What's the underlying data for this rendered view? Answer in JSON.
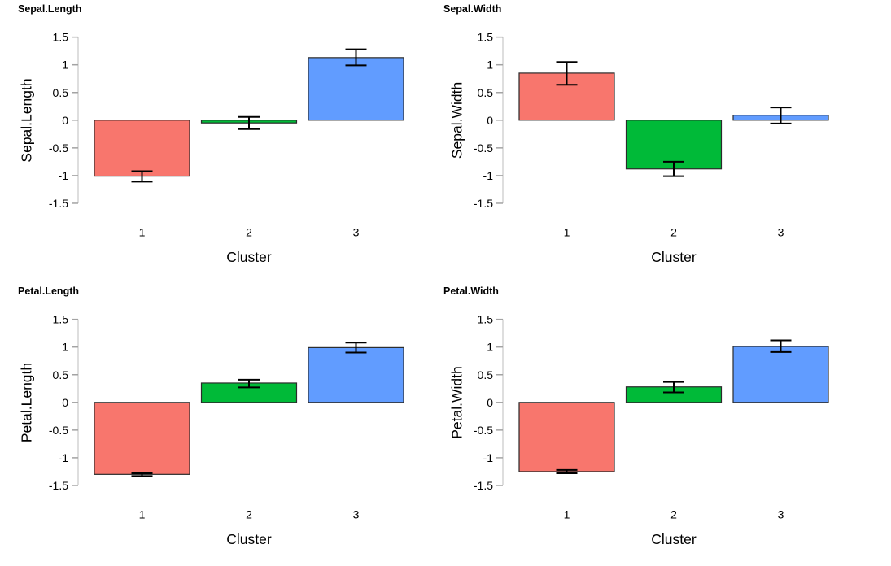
{
  "chart_data": [
    {
      "type": "bar",
      "title": "Sepal.Length",
      "ylabel": "Sepal.Length",
      "xlabel": "Cluster",
      "categories": [
        "1",
        "2",
        "3"
      ],
      "values": [
        -1.01,
        -0.05,
        1.13
      ],
      "error_low": [
        -1.11,
        -0.16,
        0.99
      ],
      "error_high": [
        -0.92,
        0.06,
        1.28
      ],
      "ylim": [
        -1.5,
        1.5
      ],
      "yticks": [
        -1.5,
        -1,
        -0.5,
        0,
        0.5,
        1,
        1.5
      ],
      "ytick_labels": [
        "-1.5",
        "-1",
        "-0.5",
        "0",
        "0.5",
        "1",
        "1.5"
      ],
      "grid": false,
      "legend": "none"
    },
    {
      "type": "bar",
      "title": "Sepal.Width",
      "ylabel": "Sepal.Width",
      "xlabel": "Cluster",
      "categories": [
        "1",
        "2",
        "3"
      ],
      "values": [
        0.85,
        -0.88,
        0.09
      ],
      "error_low": [
        0.64,
        -1.01,
        -0.06
      ],
      "error_high": [
        1.05,
        -0.75,
        0.23
      ],
      "ylim": [
        -1.5,
        1.5
      ],
      "yticks": [
        -1.5,
        -1,
        -0.5,
        0,
        0.5,
        1,
        1.5
      ],
      "ytick_labels": [
        "-1.5",
        "-1",
        "-0.5",
        "0",
        "0.5",
        "1",
        "1.5"
      ],
      "grid": false,
      "legend": "none"
    },
    {
      "type": "bar",
      "title": "Petal.Length",
      "ylabel": "Petal.Length",
      "xlabel": "Cluster",
      "categories": [
        "1",
        "2",
        "3"
      ],
      "values": [
        -1.3,
        0.35,
        0.99
      ],
      "error_low": [
        -1.33,
        0.27,
        0.9
      ],
      "error_high": [
        -1.28,
        0.41,
        1.08
      ],
      "ylim": [
        -1.5,
        1.5
      ],
      "yticks": [
        -1.5,
        -1,
        -0.5,
        0,
        0.5,
        1,
        1.5
      ],
      "ytick_labels": [
        "-1.5",
        "-1",
        "-0.5",
        "0",
        "0.5",
        "1",
        "1.5"
      ],
      "grid": false,
      "legend": "none"
    },
    {
      "type": "bar",
      "title": "Petal.Width",
      "ylabel": "Petal.Width",
      "xlabel": "Cluster",
      "categories": [
        "1",
        "2",
        "3"
      ],
      "values": [
        -1.25,
        0.28,
        1.01
      ],
      "error_low": [
        -1.28,
        0.18,
        0.91
      ],
      "error_high": [
        -1.22,
        0.37,
        1.12
      ],
      "ylim": [
        -1.5,
        1.5
      ],
      "yticks": [
        -1.5,
        -1,
        -0.5,
        0,
        0.5,
        1,
        1.5
      ],
      "ytick_labels": [
        "-1.5",
        "-1",
        "-0.5",
        "0",
        "0.5",
        "1",
        "1.5"
      ],
      "grid": false,
      "legend": "none"
    }
  ],
  "colors": {
    "bar_fills": [
      "#F8766D",
      "#00BA38",
      "#619CFF"
    ],
    "bar_border": "#2b2b2b",
    "error_bar": "#000000",
    "axis_line": "#d4d4d4",
    "axis_tick": "#a3a3a3",
    "text": "#000000",
    "background": "#ffffff"
  }
}
